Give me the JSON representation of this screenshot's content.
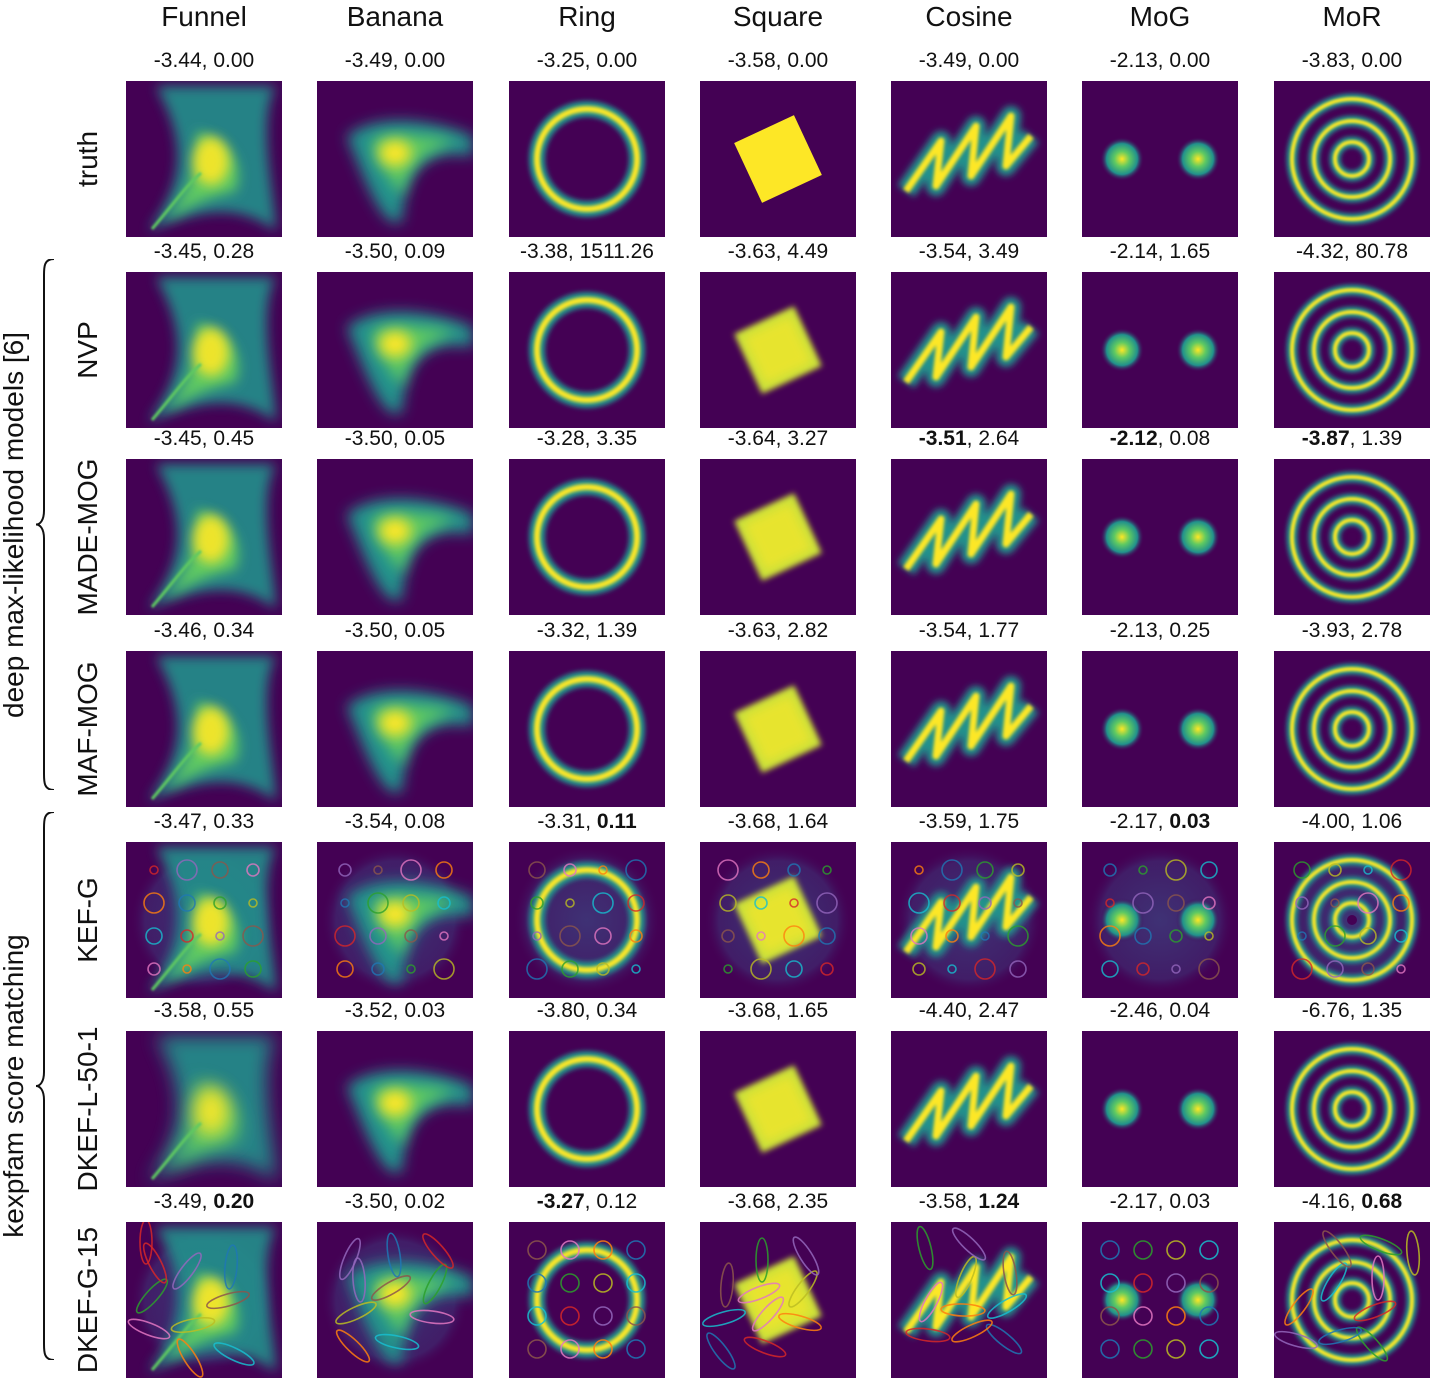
{
  "columns": [
    "Funnel",
    "Banana",
    "Ring",
    "Square",
    "Cosine",
    "MoG",
    "MoR"
  ],
  "groups": [
    {
      "label": "deep max-likelihood models [6]"
    },
    {
      "label": "kexpfam score matching"
    }
  ],
  "rows": [
    {
      "label": "truth",
      "scores": [
        {
          "a": "-3.44",
          "b": "0.00"
        },
        {
          "a": "-3.49",
          "b": "0.00"
        },
        {
          "a": "-3.25",
          "b": "0.00"
        },
        {
          "a": "-3.58",
          "b": "0.00"
        },
        {
          "a": "-3.49",
          "b": "0.00"
        },
        {
          "a": "-2.13",
          "b": "0.00"
        },
        {
          "a": "-3.83",
          "b": "0.00"
        }
      ]
    },
    {
      "label": "NVP",
      "scores": [
        {
          "a": "-3.45",
          "b": "0.28"
        },
        {
          "a": "-3.50",
          "b": "0.09"
        },
        {
          "a": "-3.38",
          "b": "1511.26"
        },
        {
          "a": "-3.63",
          "b": "4.49"
        },
        {
          "a": "-3.54",
          "b": "3.49"
        },
        {
          "a": "-2.14",
          "b": "1.65"
        },
        {
          "a": "-4.32",
          "b": "80.78"
        }
      ]
    },
    {
      "label": "MADE-MOG",
      "scores": [
        {
          "a": "-3.45",
          "b": "0.45"
        },
        {
          "a": "-3.50",
          "b": "0.05"
        },
        {
          "a": "-3.28",
          "b": "3.35"
        },
        {
          "a": "-3.64",
          "b": "3.27"
        },
        {
          "a": "-3.51",
          "b": "2.64",
          "bold_a": true
        },
        {
          "a": "-2.12",
          "b": "0.08",
          "bold_a": true
        },
        {
          "a": "-3.87",
          "b": "1.39",
          "bold_a": true
        }
      ]
    },
    {
      "label": "MAF-MOG",
      "scores": [
        {
          "a": "-3.46",
          "b": "0.34"
        },
        {
          "a": "-3.50",
          "b": "0.05"
        },
        {
          "a": "-3.32",
          "b": "1.39"
        },
        {
          "a": "-3.63",
          "b": "2.82"
        },
        {
          "a": "-3.54",
          "b": "1.77"
        },
        {
          "a": "-2.13",
          "b": "0.25"
        },
        {
          "a": "-3.93",
          "b": "2.78"
        }
      ]
    },
    {
      "label": "KEF-G",
      "scores": [
        {
          "a": "-3.47",
          "b": "0.33"
        },
        {
          "a": "-3.54",
          "b": "0.08"
        },
        {
          "a": "-3.31",
          "b": "0.11",
          "bold_b": true
        },
        {
          "a": "-3.68",
          "b": "1.64"
        },
        {
          "a": "-3.59",
          "b": "1.75"
        },
        {
          "a": "-2.17",
          "b": "0.03",
          "bold_b": true
        },
        {
          "a": "-4.00",
          "b": "1.06"
        }
      ]
    },
    {
      "label": "DKEF-L-50-1",
      "scores": [
        {
          "a": "-3.58",
          "b": "0.55"
        },
        {
          "a": "-3.52",
          "b": "0.03"
        },
        {
          "a": "-3.80",
          "b": "0.34"
        },
        {
          "a": "-3.68",
          "b": "1.65"
        },
        {
          "a": "-4.40",
          "b": "2.47"
        },
        {
          "a": "-2.46",
          "b": "0.04"
        },
        {
          "a": "-6.76",
          "b": "1.35"
        }
      ]
    },
    {
      "label": "DKEF-G-15",
      "scores": [
        {
          "a": "-3.49",
          "b": "0.20",
          "bold_b": true
        },
        {
          "a": "-3.50",
          "b": "0.02"
        },
        {
          "a": "-3.27",
          "b": "0.12",
          "bold_a": true
        },
        {
          "a": "-3.68",
          "b": "2.35"
        },
        {
          "a": "-3.58",
          "b": "1.24",
          "bold_b": true
        },
        {
          "a": "-2.17",
          "b": "0.03"
        },
        {
          "a": "-4.16",
          "b": "0.68",
          "bold_b": true
        }
      ]
    }
  ],
  "colors": {
    "background": "#440154",
    "low": "#3b528b",
    "mid": "#21918c",
    "high": "#5ec962",
    "peak": "#fde725"
  }
}
